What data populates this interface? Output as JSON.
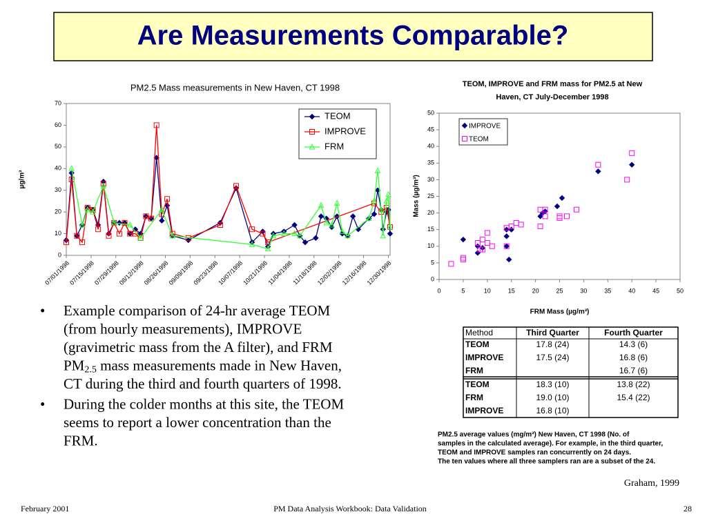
{
  "slide": {
    "title": "Are Measurements Comparable?",
    "bullets": [
      [
        "Example comparison of 24-hr average TEOM (from hourly measurements), IMPROVE (gravimetric mass from the A filter), and FRM PM",
        "2.5",
        " mass measurements made in New Haven, CT during the third and fourth quarters of 1998."
      ],
      [
        "During the colder months at this site, the TEOM seems to report a lower concentration than the FRM."
      ]
    ],
    "table": {
      "header": [
        "Method",
        "Third Quarter",
        "Fourth Quarter"
      ],
      "rows": [
        [
          "TEOM",
          "17.8 (24)",
          "14.3 (6)"
        ],
        [
          "IMPROVE",
          "17.5 (24)",
          "16.8 (6)"
        ],
        [
          "FRM",
          "",
          "16.7 (6)"
        ],
        [
          "TEOM",
          "18.3 (10)",
          "13.8 (22)"
        ],
        [
          "FRM",
          "19.0 (10)",
          "15.4 (22)"
        ],
        [
          "IMPROVE",
          "16.8 (10)",
          ""
        ]
      ]
    },
    "note": [
      "PM2.5 average values (mg/m³) New Haven, CT 1998 (No. of",
      "samples in the calculated average).  For example, in the third quarter,",
      "TEOM and IMPROVE samples ran concurrently on 24 days.",
      "The ten values where all three samplers ran are a subset of the 24."
    ],
    "credit": "Graham, 1999",
    "footer": {
      "left": "February 2001",
      "center": "PM Data Analysis Workbook:  Data Validation",
      "right": "28"
    }
  },
  "chart_data": [
    {
      "type": "line",
      "title": "PM2.5 Mass measurements in New Haven, CT 1998",
      "ylabel": "µg/m³",
      "xlim": [
        "07/01/1998",
        "12/31/1998"
      ],
      "xticks": [
        "07/01/1998",
        "07/15/1998",
        "07/29/1998",
        "08/12/1998",
        "08/26/1998",
        "09/09/1998",
        "09/23/1998",
        "10/07/1998",
        "10/21/1998",
        "11/04/1998",
        "11/18/1998",
        "12/02/1998",
        "12/16/1998",
        "12/30/1998"
      ],
      "ylim": [
        0,
        70
      ],
      "yticks": [
        0,
        10,
        20,
        30,
        40,
        50,
        60,
        70
      ],
      "legend": "top-right",
      "series": [
        {
          "name": "TEOM",
          "color": "#000080",
          "marker": "diamond",
          "x": [
            "07/01/1998",
            "07/04/1998",
            "07/07/1998",
            "07/10/1998",
            "07/13/1998",
            "07/16/1998",
            "07/19/1998",
            "07/22/1998",
            "07/25/1998",
            "07/28/1998",
            "07/31/1998",
            "08/03/1998",
            "08/06/1998",
            "08/09/1998",
            "08/12/1998",
            "08/15/1998",
            "08/18/1998",
            "08/21/1998",
            "08/24/1998",
            "08/27/1998",
            "08/30/1998",
            "09/08/1998",
            "09/26/1998",
            "10/05/1998",
            "10/14/1998",
            "10/20/1998",
            "10/23/1998",
            "10/26/1998",
            "11/01/1998",
            "11/07/1998",
            "11/10/1998",
            "11/13/1998",
            "11/19/1998",
            "11/22/1998",
            "11/25/1998",
            "11/28/1998",
            "12/01/1998",
            "12/04/1998",
            "12/07/1998",
            "12/10/1998",
            "12/13/1998",
            "12/19/1998",
            "12/22/1998",
            "12/24/1998",
            "12/26/1998",
            "12/27/1998",
            "12/29/1998",
            "12/30/1998",
            "12/31/1998"
          ],
          "values": [
            7,
            38,
            9,
            14,
            22,
            21,
            14,
            34,
            10,
            15,
            15,
            15,
            10,
            12,
            10,
            18,
            17,
            45,
            16,
            23,
            9,
            7,
            15,
            31,
            6,
            11,
            4,
            10,
            11,
            14,
            9,
            6,
            8,
            18,
            17,
            13,
            18,
            10,
            9,
            18,
            12,
            17,
            19,
            30,
            21,
            12,
            20,
            21,
            10
          ]
        },
        {
          "name": "IMPROVE",
          "color": "#ff0000",
          "marker": "square",
          "x": [
            "07/01/1998",
            "07/04/1998",
            "07/07/1998",
            "07/10/1998",
            "07/13/1998",
            "07/16/1998",
            "07/19/1998",
            "07/22/1998",
            "07/25/1998",
            "07/28/1998",
            "07/31/1998",
            "08/03/1998",
            "08/06/1998",
            "08/09/1998",
            "08/12/1998",
            "08/15/1998",
            "08/18/1998",
            "08/21/1998",
            "08/24/1998",
            "08/27/1998",
            "08/30/1998",
            "09/08/1998",
            "09/26/1998",
            "10/05/1998",
            "10/14/1998",
            "10/20/1998",
            "10/23/1998",
            "12/22/1998",
            "12/26/1998",
            "12/29/1998",
            "12/31/1998"
          ],
          "values": [
            6,
            35,
            9,
            6,
            22,
            21,
            12,
            33,
            9,
            15,
            10,
            15,
            10,
            10,
            8,
            18,
            17,
            60,
            19,
            26,
            10,
            8,
            14,
            32,
            12,
            10,
            6,
            24,
            20,
            22,
            13
          ]
        },
        {
          "name": "FRM",
          "color": "#33ff33",
          "marker": "triangle",
          "x": [
            "07/04/1998",
            "07/10/1998",
            "07/13/1998",
            "07/16/1998",
            "07/22/1998",
            "07/28/1998",
            "08/06/1998",
            "08/12/1998",
            "08/24/1998",
            "08/30/1998",
            "10/14/1998",
            "10/23/1998",
            "10/26/1998",
            "11/01/1998",
            "11/07/1998",
            "11/10/1998",
            "11/22/1998",
            "11/25/1998",
            "11/28/1998",
            "12/01/1998",
            "12/04/1998",
            "12/07/1998",
            "12/19/1998",
            "12/22/1998",
            "12/24/1998",
            "12/26/1998",
            "12/27/1998",
            "12/29/1998",
            "12/30/1998",
            "12/31/1998"
          ],
          "values": [
            40,
            14,
            21,
            20,
            32,
            15,
            14,
            8,
            21,
            9,
            5,
            3,
            9,
            10,
            10,
            9,
            23,
            15,
            14,
            24,
            11,
            9,
            17,
            25,
            39,
            21,
            9,
            25,
            28,
            13
          ]
        }
      ]
    },
    {
      "type": "scatter",
      "title": "TEOM, IMPROVE and FRM mass for PM2.5 at New Haven, CT July-December 1998",
      "xlabel": "FRM Mass (µg/m³)",
      "ylabel": "Mass (µg/m³)",
      "xlim": [
        0,
        50
      ],
      "xticks": [
        0,
        5,
        10,
        15,
        20,
        25,
        30,
        35,
        40,
        45,
        50
      ],
      "ylim": [
        0,
        50
      ],
      "yticks": [
        0,
        5,
        10,
        15,
        20,
        25,
        30,
        35,
        40,
        45,
        50
      ],
      "legend": "top-left",
      "series": [
        {
          "name": "IMPROVE",
          "color": "#000080",
          "marker": "diamond",
          "x": [
            5,
            8,
            8,
            9,
            14,
            14,
            14,
            14.5,
            15,
            21,
            21.5,
            22,
            24.5,
            25.5,
            33,
            40
          ],
          "values": [
            12,
            8,
            10,
            9.5,
            13,
            10,
            15,
            6,
            15,
            19,
            20,
            20.5,
            22,
            24.5,
            32.5,
            34.5
          ]
        },
        {
          "name": "TEOM",
          "color": "#ff00ff",
          "marker": "square",
          "x": [
            2.5,
            5,
            5,
            8,
            8.5,
            9,
            9,
            10,
            10,
            11,
            14,
            14,
            15,
            16,
            17,
            21,
            21,
            22,
            22,
            25,
            25,
            26.5,
            28.5,
            33,
            39,
            40
          ],
          "values": [
            4.7,
            6,
            6.5,
            11,
            9,
            9,
            12,
            11,
            14,
            10,
            15.5,
            10,
            16,
            17,
            16.5,
            16,
            21,
            21,
            19,
            19,
            18.5,
            19,
            21,
            34.5,
            30,
            38
          ]
        }
      ]
    }
  ]
}
